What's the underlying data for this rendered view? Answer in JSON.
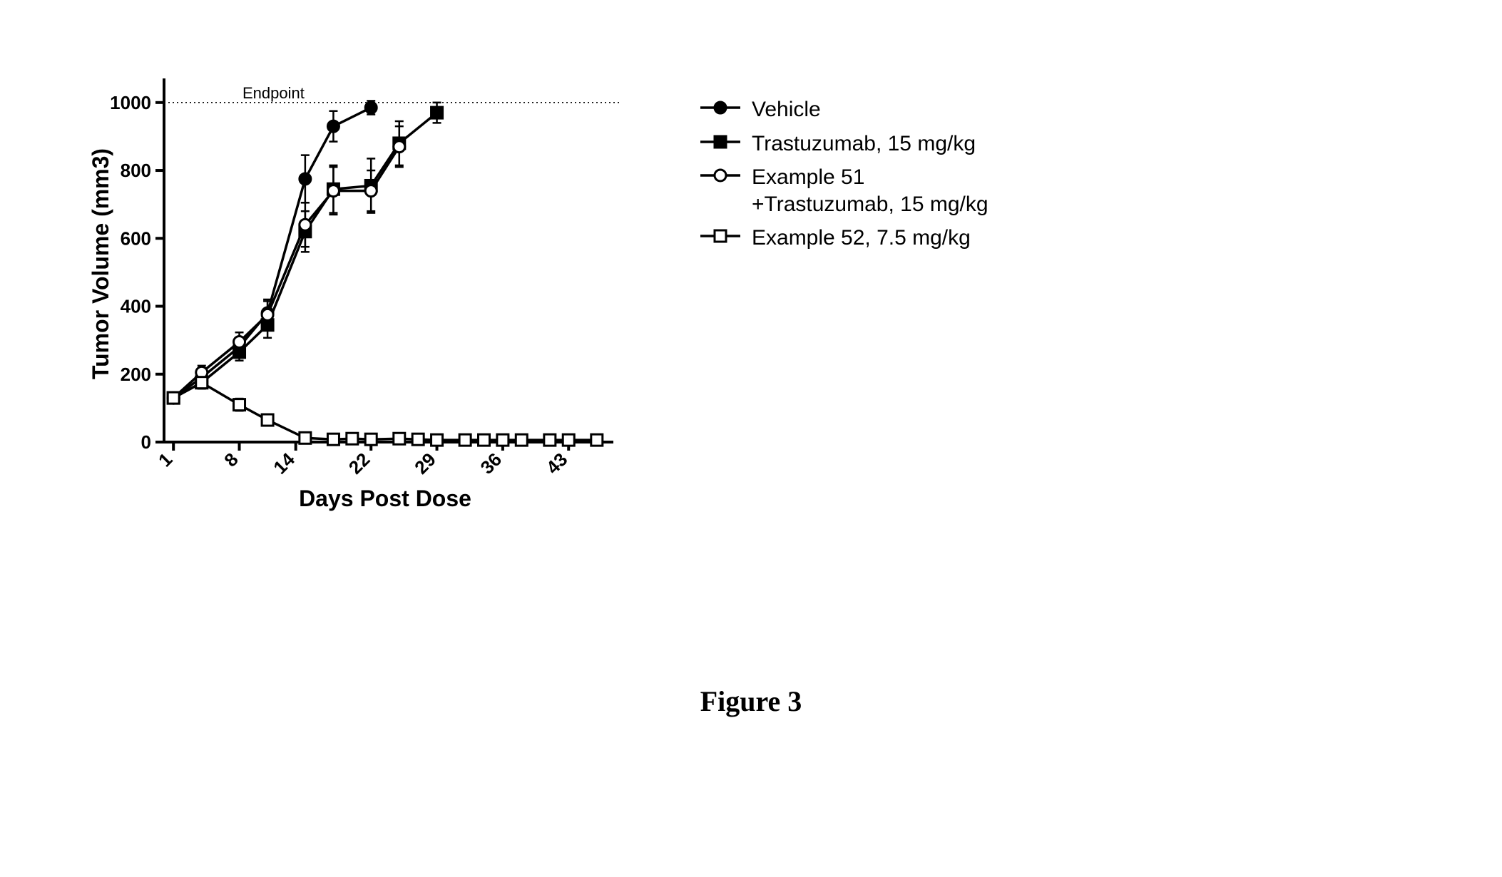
{
  "chart": {
    "type": "line",
    "endpoint_label": "Endpoint",
    "endpoint_value": 1000,
    "x_label": "Days Post Dose",
    "y_label": "Tumor Volume (mm3)",
    "x_ticks": [
      1,
      8,
      14,
      22,
      29,
      36,
      43
    ],
    "x_tick_labels": [
      "1",
      "8",
      "14",
      "22",
      "29",
      "36",
      "43"
    ],
    "y_ticks": [
      0,
      200,
      400,
      600,
      800,
      1000
    ],
    "y_tick_labels": [
      "0",
      "200",
      "400",
      "600",
      "800",
      "1000"
    ],
    "xlim": [
      0,
      47
    ],
    "ylim": [
      0,
      1050
    ],
    "axis_color": "#000000",
    "axis_width": 4,
    "background_color": "#ffffff",
    "endpoint_line_color": "#000000",
    "endpoint_line_dash": "2,4",
    "tick_fontsize": 26,
    "axis_label_fontsize": 32,
    "series": [
      {
        "name": "Vehicle",
        "marker": "circle",
        "fill": "#000000",
        "stroke": "#000000",
        "line_color": "#000000",
        "line_width": 3.5,
        "marker_size": 8,
        "points": [
          {
            "x": 1,
            "y": 130,
            "err": 12
          },
          {
            "x": 4,
            "y": 190,
            "err": 20
          },
          {
            "x": 8,
            "y": 280,
            "err": 25
          },
          {
            "x": 11,
            "y": 380,
            "err": 40
          },
          {
            "x": 15,
            "y": 775,
            "err": 70
          },
          {
            "x": 18,
            "y": 930,
            "err": 45
          },
          {
            "x": 22,
            "y": 985,
            "err": 20
          }
        ]
      },
      {
        "name": "Trastuzumab, 15 mg/kg",
        "marker": "square",
        "fill": "#000000",
        "stroke": "#000000",
        "line_color": "#000000",
        "line_width": 3.5,
        "marker_size": 8,
        "points": [
          {
            "x": 1,
            "y": 130,
            "err": 12
          },
          {
            "x": 4,
            "y": 175,
            "err": 18
          },
          {
            "x": 8,
            "y": 265,
            "err": 25
          },
          {
            "x": 11,
            "y": 345,
            "err": 38
          },
          {
            "x": 15,
            "y": 620,
            "err": 60
          },
          {
            "x": 18,
            "y": 745,
            "err": 70
          },
          {
            "x": 22,
            "y": 755,
            "err": 80
          },
          {
            "x": 25,
            "y": 880,
            "err": 65
          },
          {
            "x": 29,
            "y": 970,
            "err": 30
          }
        ]
      },
      {
        "name": "Example 51\n+Trastuzumab, 15 mg/kg",
        "marker": "circle",
        "fill": "#ffffff",
        "stroke": "#000000",
        "line_color": "#000000",
        "line_width": 3.5,
        "marker_size": 8,
        "points": [
          {
            "x": 1,
            "y": 130,
            "err": 12
          },
          {
            "x": 4,
            "y": 205,
            "err": 20
          },
          {
            "x": 8,
            "y": 295,
            "err": 28
          },
          {
            "x": 11,
            "y": 375,
            "err": 40
          },
          {
            "x": 15,
            "y": 640,
            "err": 65
          },
          {
            "x": 18,
            "y": 740,
            "err": 70
          },
          {
            "x": 22,
            "y": 740,
            "err": 60
          },
          {
            "x": 25,
            "y": 870,
            "err": 60
          }
        ]
      },
      {
        "name": "Example 52, 7.5 mg/kg",
        "marker": "square",
        "fill": "#ffffff",
        "stroke": "#000000",
        "line_color": "#000000",
        "line_width": 3.5,
        "marker_size": 8,
        "points": [
          {
            "x": 1,
            "y": 130,
            "err": 12
          },
          {
            "x": 4,
            "y": 175,
            "err": 15
          },
          {
            "x": 8,
            "y": 110,
            "err": 18
          },
          {
            "x": 11,
            "y": 65,
            "err": 15
          },
          {
            "x": 15,
            "y": 12,
            "err": 10
          },
          {
            "x": 18,
            "y": 8,
            "err": 8
          },
          {
            "x": 20,
            "y": 10,
            "err": 10
          },
          {
            "x": 22,
            "y": 8,
            "err": 8
          },
          {
            "x": 25,
            "y": 10,
            "err": 10
          },
          {
            "x": 27,
            "y": 8,
            "err": 8
          },
          {
            "x": 29,
            "y": 6,
            "err": 6
          },
          {
            "x": 32,
            "y": 6,
            "err": 6
          },
          {
            "x": 34,
            "y": 6,
            "err": 6
          },
          {
            "x": 36,
            "y": 6,
            "err": 6
          },
          {
            "x": 38,
            "y": 6,
            "err": 6
          },
          {
            "x": 41,
            "y": 6,
            "err": 6
          },
          {
            "x": 43,
            "y": 6,
            "err": 6
          },
          {
            "x": 46,
            "y": 6,
            "err": 6
          }
        ]
      }
    ],
    "legend_labels": [
      "Vehicle",
      "Trastuzumab, 15 mg/kg",
      "Example 51\n+Trastuzumab, 15 mg/kg",
      "Example 52, 7.5 mg/kg"
    ]
  },
  "caption": "Figure 3"
}
